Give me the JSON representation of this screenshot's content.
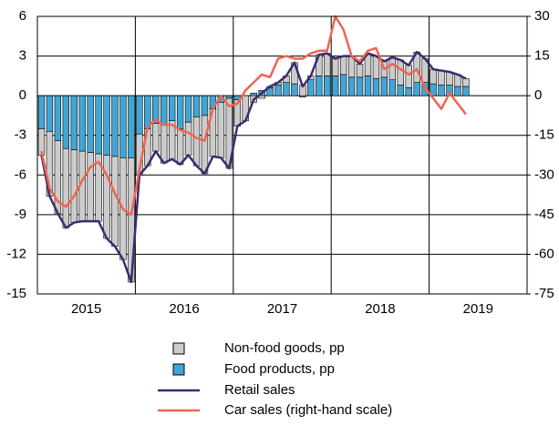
{
  "chart_data": {
    "type": "combo",
    "categories": [
      null,
      null,
      null,
      null,
      null,
      null,
      "2015",
      null,
      null,
      null,
      null,
      null,
      null,
      null,
      null,
      null,
      null,
      null,
      "2016",
      null,
      null,
      null,
      null,
      null,
      null,
      null,
      null,
      null,
      null,
      null,
      "2017",
      null,
      null,
      null,
      null,
      null,
      null,
      null,
      null,
      null,
      null,
      null,
      "2018",
      null,
      null,
      null,
      null,
      null,
      null,
      null,
      null,
      null,
      null,
      null,
      "2019",
      null,
      null,
      null,
      null,
      null
    ],
    "series": [
      {
        "name": "Non-food goods, pp",
        "type": "bar",
        "color": "#cccccc",
        "values": [
          -2.0,
          -4.9,
          -5.5,
          -6.0,
          -5.5,
          -5.3,
          -5.2,
          -5.1,
          -6.3,
          -6.8,
          -7.7,
          -9.4,
          -3.1,
          -2.8,
          -2.1,
          -2.9,
          -2.9,
          -2.7,
          -2.5,
          -3.7,
          -4.4,
          -3.6,
          -4.2,
          -5.3,
          -2.0,
          -1.9,
          -0.5,
          -0.2,
          0.1,
          0.2,
          0.5,
          1.6,
          0.8,
          0.3,
          1.6,
          1.7,
          1.3,
          1.4,
          1.6,
          1.0,
          1.7,
          1.7,
          1.2,
          1.7,
          1.9,
          1.7,
          2.3,
          1.8,
          1.1,
          1.1,
          1.0,
          0.9,
          0.6,
          null,
          null,
          null,
          null,
          null,
          null,
          null
        ]
      },
      {
        "name": "Food products, pp",
        "type": "bar",
        "color": "#41a6d6",
        "values": [
          -2.5,
          -2.7,
          -3.4,
          -4.0,
          -4.1,
          -4.2,
          -4.3,
          -4.4,
          -4.5,
          -4.6,
          -4.7,
          -4.7,
          -2.9,
          -2.5,
          -2.1,
          -2.2,
          -1.9,
          -2.5,
          -2.0,
          -1.6,
          -1.5,
          -1.0,
          -0.5,
          -0.2,
          -0.3,
          0.0,
          0.2,
          0.4,
          0.6,
          0.8,
          1.0,
          0.9,
          -0.1,
          1.2,
          1.5,
          1.5,
          1.5,
          1.6,
          1.4,
          1.4,
          1.5,
          1.3,
          1.4,
          1.2,
          0.8,
          0.6,
          1.0,
          1.0,
          0.9,
          0.8,
          0.8,
          0.7,
          0.7,
          null,
          null,
          null,
          null,
          null,
          null,
          null
        ]
      },
      {
        "name": "Retail sales",
        "type": "line",
        "color": "#3d2b6e",
        "values": [
          -4.5,
          -7.6,
          -8.9,
          -10,
          -9.6,
          -9.5,
          -9.5,
          -9.5,
          -10.8,
          -11.4,
          -12.4,
          -14.1,
          -6.0,
          -5.3,
          -4.2,
          -5.1,
          -4.8,
          -5.2,
          -4.5,
          -5.3,
          -5.9,
          -4.6,
          -4.7,
          -5.5,
          -2.3,
          -1.9,
          -0.3,
          0.2,
          0.7,
          1.0,
          1.5,
          2.5,
          0.7,
          1.5,
          3.1,
          3.2,
          2.8,
          3.0,
          3.0,
          2.4,
          3.2,
          3.0,
          2.6,
          2.9,
          2.7,
          2.3,
          3.3,
          2.8,
          2.0,
          1.9,
          1.8,
          1.6,
          1.3,
          null,
          null,
          null,
          null,
          null,
          null,
          null
        ]
      },
      {
        "name": "Car sales (right-hand scale)",
        "type": "line",
        "axis": "y2",
        "color": "#f06451",
        "values": [
          -21,
          -35,
          -40,
          -42,
          -38,
          -32,
          -27,
          -25,
          -30,
          -37,
          -43,
          -45,
          -28,
          -12,
          -9,
          -11,
          -11,
          -13,
          -14,
          -16,
          -17,
          -5,
          0,
          -4,
          -3,
          2,
          5,
          8,
          7,
          14,
          15,
          14,
          14,
          16,
          17,
          17,
          30,
          25,
          15,
          13,
          17,
          18,
          10,
          12,
          10,
          8,
          10,
          3,
          -1,
          -5,
          1,
          -3,
          -7,
          null,
          null,
          null,
          null,
          null,
          null,
          null
        ]
      }
    ],
    "ylim": [
      -15,
      6
    ],
    "yticks": [
      6,
      3,
      0,
      -3,
      -6,
      -9,
      -12,
      -15
    ],
    "y2lim": [
      -75,
      30
    ],
    "y2ticks": [
      30,
      15,
      0,
      -15,
      -30,
      -45,
      -60,
      -75
    ],
    "grid": true
  }
}
